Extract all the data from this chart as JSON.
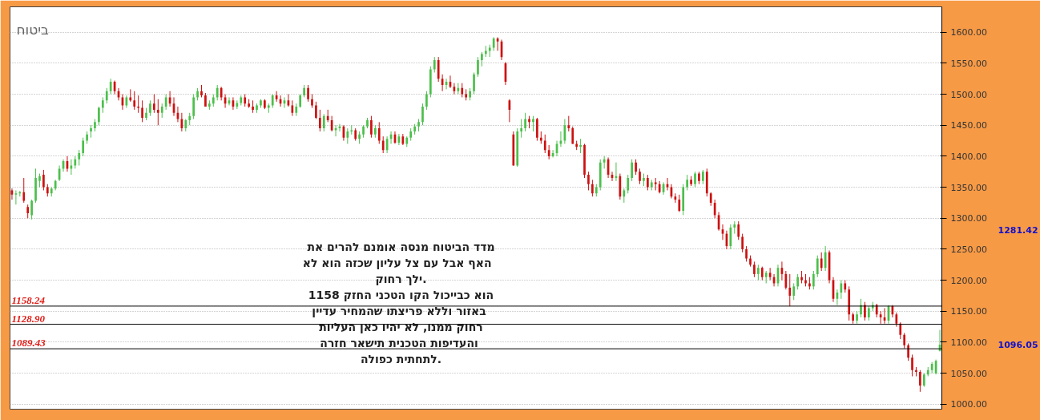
{
  "chart_data": {
    "type": "candlestick",
    "title": "ביטוח",
    "categories": [
      null,
      null,
      null,
      null,
      null,
      null,
      null,
      null,
      null,
      null,
      null,
      null,
      null,
      null,
      null,
      null,
      null,
      null,
      null,
      null,
      null,
      null,
      null,
      null,
      null,
      null,
      null,
      null,
      null,
      null,
      null,
      null,
      null,
      null,
      null,
      null,
      null,
      null,
      null,
      null,
      null,
      null,
      null,
      null,
      null,
      null,
      null,
      null,
      null,
      null,
      null,
      null,
      null,
      null,
      null,
      null,
      null,
      null,
      null,
      null,
      null,
      null,
      null,
      null,
      null,
      null,
      null,
      null,
      null,
      null,
      null,
      null,
      null,
      null,
      null,
      null,
      null,
      null,
      null,
      null,
      null,
      null,
      null,
      null,
      null,
      null,
      null,
      null,
      null,
      null,
      null,
      null,
      null,
      null,
      null,
      null,
      null,
      null,
      null,
      null,
      null,
      null,
      null,
      null,
      null,
      null,
      null,
      null,
      null,
      null,
      null,
      null,
      null,
      null,
      null,
      null,
      null,
      null,
      null,
      null,
      null,
      null,
      null,
      null,
      null,
      null,
      null,
      null,
      null,
      null,
      null,
      null,
      null,
      null,
      null,
      null,
      null,
      null,
      null,
      null,
      null,
      null,
      null,
      null,
      null,
      null,
      null,
      null,
      null,
      null,
      null,
      null,
      null,
      null,
      null,
      null,
      null,
      null,
      null,
      null,
      null,
      null,
      null,
      null,
      null,
      null,
      null,
      null,
      null,
      null,
      null,
      null,
      null,
      null,
      null,
      null,
      null,
      null,
      null,
      null,
      null,
      null,
      null,
      null,
      null,
      null,
      null,
      null,
      null,
      null,
      null,
      null,
      null,
      null,
      null,
      null,
      null,
      null,
      null,
      null,
      null,
      null,
      null,
      null,
      null,
      null,
      null,
      null,
      null,
      null,
      null,
      null,
      null,
      null,
      null,
      null,
      null,
      null,
      null,
      null,
      null,
      null,
      null,
      null,
      null,
      null,
      null,
      null,
      null,
      null,
      null,
      null,
      null,
      null,
      null,
      null
    ],
    "ohlc": [
      [
        1345,
        1348,
        1330,
        1338
      ],
      [
        1338,
        1345,
        1322,
        1340
      ],
      [
        1340,
        1344,
        1335,
        1342
      ],
      [
        1342,
        1365,
        1325,
        1328
      ],
      [
        1318,
        1322,
        1300,
        1308
      ],
      [
        1305,
        1330,
        1298,
        1328
      ],
      [
        1328,
        1380,
        1325,
        1365
      ],
      [
        1360,
        1372,
        1350,
        1368
      ],
      [
        1370,
        1378,
        1345,
        1350
      ],
      [
        1350,
        1355,
        1335,
        1340
      ],
      [
        1340,
        1350,
        1335,
        1348
      ],
      [
        1348,
        1362,
        1345,
        1360
      ],
      [
        1362,
        1385,
        1360,
        1380
      ],
      [
        1380,
        1395,
        1375,
        1392
      ],
      [
        1392,
        1400,
        1375,
        1380
      ],
      [
        1380,
        1395,
        1370,
        1385
      ],
      [
        1385,
        1400,
        1380,
        1395
      ],
      [
        1395,
        1410,
        1385,
        1405
      ],
      [
        1405,
        1430,
        1400,
        1425
      ],
      [
        1425,
        1440,
        1420,
        1435
      ],
      [
        1440,
        1450,
        1430,
        1445
      ],
      [
        1445,
        1460,
        1440,
        1455
      ],
      [
        1455,
        1480,
        1450,
        1478
      ],
      [
        1478,
        1495,
        1470,
        1490
      ],
      [
        1490,
        1510,
        1485,
        1505
      ],
      [
        1505,
        1525,
        1500,
        1520
      ],
      [
        1520,
        1522,
        1500,
        1505
      ],
      [
        1505,
        1510,
        1490,
        1495
      ],
      [
        1495,
        1500,
        1475,
        1482
      ],
      [
        1482,
        1498,
        1478,
        1495
      ],
      [
        1495,
        1508,
        1488,
        1490
      ],
      [
        1490,
        1505,
        1475,
        1480
      ],
      [
        1480,
        1498,
        1470,
        1478
      ],
      [
        1478,
        1490,
        1455,
        1462
      ],
      [
        1462,
        1478,
        1458,
        1470
      ],
      [
        1470,
        1490,
        1465,
        1485
      ],
      [
        1485,
        1500,
        1470,
        1475
      ],
      [
        1475,
        1492,
        1450,
        1470
      ],
      [
        1470,
        1485,
        1462,
        1480
      ],
      [
        1480,
        1500,
        1475,
        1495
      ],
      [
        1495,
        1505,
        1480,
        1485
      ],
      [
        1485,
        1495,
        1465,
        1470
      ],
      [
        1470,
        1480,
        1455,
        1460
      ],
      [
        1460,
        1470,
        1440,
        1445
      ],
      [
        1445,
        1460,
        1440,
        1458
      ],
      [
        1458,
        1470,
        1450,
        1465
      ],
      [
        1465,
        1500,
        1460,
        1495
      ],
      [
        1495,
        1510,
        1490,
        1505
      ],
      [
        1505,
        1515,
        1495,
        1498
      ],
      [
        1498,
        1502,
        1480,
        1480
      ],
      [
        1480,
        1490,
        1475,
        1485
      ],
      [
        1485,
        1500,
        1480,
        1495
      ],
      [
        1495,
        1515,
        1490,
        1510
      ],
      [
        1510,
        1512,
        1490,
        1495
      ],
      [
        1495,
        1500,
        1478,
        1485
      ],
      [
        1485,
        1495,
        1482,
        1490
      ],
      [
        1490,
        1495,
        1475,
        1480
      ],
      [
        1480,
        1490,
        1476,
        1486
      ],
      [
        1486,
        1498,
        1482,
        1495
      ],
      [
        1495,
        1500,
        1480,
        1485
      ],
      [
        1485,
        1492,
        1478,
        1480
      ],
      [
        1480,
        1490,
        1470,
        1475
      ],
      [
        1475,
        1485,
        1470,
        1482
      ],
      [
        1482,
        1492,
        1478,
        1490
      ],
      [
        1490,
        1492,
        1476,
        1478
      ],
      [
        1478,
        1485,
        1470,
        1482
      ],
      [
        1482,
        1500,
        1478,
        1498
      ],
      [
        1498,
        1505,
        1488,
        1492
      ],
      [
        1492,
        1498,
        1480,
        1485
      ],
      [
        1485,
        1495,
        1478,
        1490
      ],
      [
        1490,
        1500,
        1480,
        1482
      ],
      [
        1482,
        1490,
        1465,
        1470
      ],
      [
        1470,
        1485,
        1465,
        1480
      ],
      [
        1480,
        1500,
        1478,
        1498
      ],
      [
        1498,
        1515,
        1495,
        1510
      ],
      [
        1510,
        1515,
        1488,
        1492
      ],
      [
        1492,
        1500,
        1478,
        1482
      ],
      [
        1482,
        1488,
        1460,
        1462
      ],
      [
        1462,
        1475,
        1440,
        1445
      ],
      [
        1445,
        1468,
        1440,
        1465
      ],
      [
        1465,
        1475,
        1455,
        1458
      ],
      [
        1458,
        1465,
        1440,
        1442
      ],
      [
        1442,
        1450,
        1432,
        1445
      ],
      [
        1445,
        1452,
        1440,
        1448
      ],
      [
        1448,
        1450,
        1425,
        1430
      ],
      [
        1430,
        1445,
        1420,
        1440
      ],
      [
        1440,
        1450,
        1435,
        1442
      ],
      [
        1442,
        1445,
        1425,
        1428
      ],
      [
        1428,
        1440,
        1420,
        1435
      ],
      [
        1435,
        1450,
        1430,
        1448
      ],
      [
        1448,
        1462,
        1445,
        1458
      ],
      [
        1458,
        1465,
        1430,
        1435
      ],
      [
        1435,
        1450,
        1430,
        1445
      ],
      [
        1445,
        1455,
        1420,
        1425
      ],
      [
        1425,
        1432,
        1405,
        1410
      ],
      [
        1410,
        1432,
        1405,
        1428
      ],
      [
        1428,
        1440,
        1420,
        1435
      ],
      [
        1435,
        1440,
        1420,
        1422
      ],
      [
        1422,
        1436,
        1418,
        1432
      ],
      [
        1432,
        1436,
        1418,
        1420
      ],
      [
        1420,
        1432,
        1415,
        1430
      ],
      [
        1430,
        1445,
        1425,
        1440
      ],
      [
        1440,
        1452,
        1435,
        1448
      ],
      [
        1448,
        1460,
        1440,
        1455
      ],
      [
        1455,
        1485,
        1450,
        1480
      ],
      [
        1480,
        1505,
        1475,
        1500
      ],
      [
        1500,
        1545,
        1495,
        1540
      ],
      [
        1540,
        1560,
        1535,
        1555
      ],
      [
        1555,
        1560,
        1520,
        1525
      ],
      [
        1525,
        1532,
        1505,
        1515
      ],
      [
        1515,
        1525,
        1508,
        1520
      ],
      [
        1520,
        1530,
        1510,
        1512
      ],
      [
        1512,
        1518,
        1500,
        1505
      ],
      [
        1505,
        1518,
        1500,
        1510
      ],
      [
        1510,
        1518,
        1495,
        1500
      ],
      [
        1500,
        1508,
        1490,
        1495
      ],
      [
        1495,
        1510,
        1490,
        1505
      ],
      [
        1505,
        1535,
        1500,
        1532
      ],
      [
        1532,
        1560,
        1528,
        1555
      ],
      [
        1555,
        1568,
        1545,
        1565
      ],
      [
        1565,
        1578,
        1560,
        1570
      ],
      [
        1570,
        1580,
        1560,
        1575
      ],
      [
        1575,
        1592,
        1570,
        1590
      ],
      [
        1590,
        1592,
        1570,
        1585
      ],
      [
        1585,
        1588,
        1555,
        1560
      ],
      [
        1550,
        1552,
        1515,
        1520
      ],
      [
        1490,
        1492,
        1455,
        1475
      ],
      [
        1435,
        1440,
        1385,
        1385
      ],
      [
        1385,
        1445,
        1383,
        1440
      ],
      [
        1440,
        1460,
        1430,
        1445
      ],
      [
        1445,
        1470,
        1440,
        1460
      ],
      [
        1460,
        1465,
        1445,
        1455
      ],
      [
        1455,
        1465,
        1440,
        1460
      ],
      [
        1460,
        1462,
        1425,
        1430
      ],
      [
        1430,
        1440,
        1420,
        1425
      ],
      [
        1425,
        1435,
        1405,
        1410
      ],
      [
        1410,
        1418,
        1395,
        1400
      ],
      [
        1400,
        1410,
        1398,
        1405
      ],
      [
        1405,
        1425,
        1400,
        1420
      ],
      [
        1420,
        1440,
        1415,
        1425
      ],
      [
        1425,
        1460,
        1420,
        1450
      ],
      [
        1450,
        1465,
        1440,
        1445
      ],
      [
        1445,
        1448,
        1420,
        1420
      ],
      [
        1420,
        1425,
        1410,
        1415
      ],
      [
        1415,
        1428,
        1405,
        1418
      ],
      [
        1418,
        1420,
        1365,
        1370
      ],
      [
        1370,
        1375,
        1345,
        1355
      ],
      [
        1355,
        1362,
        1335,
        1340
      ],
      [
        1340,
        1355,
        1335,
        1350
      ],
      [
        1350,
        1395,
        1345,
        1390
      ],
      [
        1390,
        1400,
        1380,
        1395
      ],
      [
        1395,
        1398,
        1365,
        1370
      ],
      [
        1370,
        1375,
        1360,
        1365
      ],
      [
        1365,
        1390,
        1360,
        1368
      ],
      [
        1368,
        1372,
        1330,
        1335
      ],
      [
        1335,
        1348,
        1325,
        1345
      ],
      [
        1345,
        1370,
        1340,
        1365
      ],
      [
        1365,
        1395,
        1360,
        1390
      ],
      [
        1390,
        1395,
        1370,
        1375
      ],
      [
        1375,
        1380,
        1355,
        1360
      ],
      [
        1360,
        1372,
        1352,
        1365
      ],
      [
        1365,
        1370,
        1345,
        1350
      ],
      [
        1350,
        1362,
        1345,
        1358
      ],
      [
        1358,
        1365,
        1345,
        1355
      ],
      [
        1355,
        1360,
        1340,
        1342
      ],
      [
        1342,
        1358,
        1338,
        1355
      ],
      [
        1355,
        1365,
        1345,
        1350
      ],
      [
        1350,
        1355,
        1332,
        1335
      ],
      [
        1335,
        1340,
        1325,
        1330
      ],
      [
        1330,
        1338,
        1310,
        1312
      ],
      [
        1312,
        1355,
        1305,
        1350
      ],
      [
        1350,
        1370,
        1345,
        1362
      ],
      [
        1362,
        1368,
        1352,
        1355
      ],
      [
        1355,
        1375,
        1350,
        1372
      ],
      [
        1372,
        1375,
        1355,
        1360
      ],
      [
        1360,
        1378,
        1355,
        1375
      ],
      [
        1375,
        1380,
        1335,
        1340
      ],
      [
        1340,
        1342,
        1320,
        1325
      ],
      [
        1325,
        1330,
        1300,
        1305
      ],
      [
        1305,
        1310,
        1280,
        1282
      ],
      [
        1282,
        1290,
        1265,
        1275
      ],
      [
        1275,
        1280,
        1250,
        1255
      ],
      [
        1255,
        1290,
        1250,
        1285
      ],
      [
        1285,
        1295,
        1275,
        1290
      ],
      [
        1290,
        1295,
        1265,
        1270
      ],
      [
        1270,
        1275,
        1245,
        1250
      ],
      [
        1250,
        1255,
        1230,
        1235
      ],
      [
        1235,
        1240,
        1222,
        1225
      ],
      [
        1225,
        1230,
        1205,
        1210
      ],
      [
        1210,
        1225,
        1200,
        1220
      ],
      [
        1220,
        1222,
        1200,
        1205
      ],
      [
        1205,
        1215,
        1195,
        1212
      ],
      [
        1212,
        1220,
        1200,
        1205
      ],
      [
        1205,
        1210,
        1190,
        1195
      ],
      [
        1195,
        1225,
        1190,
        1220
      ],
      [
        1220,
        1230,
        1200,
        1210
      ],
      [
        1210,
        1215,
        1185,
        1188
      ],
      [
        1188,
        1210,
        1158,
        1175
      ],
      [
        1175,
        1195,
        1168,
        1190
      ],
      [
        1190,
        1210,
        1185,
        1205
      ],
      [
        1205,
        1215,
        1195,
        1200
      ],
      [
        1200,
        1210,
        1190,
        1195
      ],
      [
        1195,
        1205,
        1185,
        1190
      ],
      [
        1190,
        1215,
        1185,
        1210
      ],
      [
        1210,
        1240,
        1205,
        1235
      ],
      [
        1235,
        1245,
        1215,
        1220
      ],
      [
        1220,
        1255,
        1215,
        1245
      ],
      [
        1245,
        1248,
        1195,
        1200
      ],
      [
        1200,
        1205,
        1165,
        1170
      ],
      [
        1170,
        1185,
        1160,
        1180
      ],
      [
        1180,
        1200,
        1170,
        1195
      ],
      [
        1195,
        1200,
        1180,
        1185
      ],
      [
        1185,
        1190,
        1135,
        1145
      ],
      [
        1145,
        1148,
        1130,
        1135
      ],
      [
        1135,
        1150,
        1130,
        1145
      ],
      [
        1145,
        1170,
        1140,
        1160
      ],
      [
        1160,
        1165,
        1135,
        1140
      ],
      [
        1140,
        1158,
        1135,
        1155
      ],
      [
        1155,
        1165,
        1150,
        1160
      ],
      [
        1160,
        1162,
        1140,
        1145
      ],
      [
        1145,
        1150,
        1130,
        1140
      ],
      [
        1140,
        1155,
        1130,
        1135
      ],
      [
        1135,
        1160,
        1130,
        1158
      ],
      [
        1158,
        1160,
        1140,
        1145
      ],
      [
        1145,
        1148,
        1125,
        1130
      ],
      [
        1130,
        1132,
        1105,
        1112
      ],
      [
        1112,
        1115,
        1090,
        1095
      ],
      [
        1095,
        1098,
        1070,
        1075
      ],
      [
        1075,
        1080,
        1045,
        1055
      ],
      [
        1055,
        1060,
        1045,
        1052
      ],
      [
        1052,
        1055,
        1020,
        1030
      ],
      [
        1030,
        1050,
        1028,
        1048
      ],
      [
        1048,
        1060,
        1045,
        1055
      ],
      [
        1055,
        1068,
        1050,
        1065
      ],
      [
        1050,
        1072,
        1048,
        1070
      ],
      [
        1086,
        1120,
        1085,
        1096.05
      ]
    ],
    "ylim": [
      992,
      1641
    ],
    "yticks": [
      {
        "value": 1000,
        "label": "1000.00"
      },
      {
        "value": 1050,
        "label": "1050.00"
      },
      {
        "value": 1100,
        "label": "1100.00"
      },
      {
        "value": 1150,
        "label": "1150.00"
      },
      {
        "value": 1200,
        "label": "1200.00"
      },
      {
        "value": 1250,
        "label": "1250.00"
      },
      {
        "value": 1300,
        "label": "1300.00"
      },
      {
        "value": 1350,
        "label": "1350.00"
      },
      {
        "value": 1400,
        "label": "1400.00"
      },
      {
        "value": 1450,
        "label": "1450.00"
      },
      {
        "value": 1500,
        "label": "1500.00"
      },
      {
        "value": 1550,
        "label": "1550.00"
      },
      {
        "value": 1600,
        "label": "1600.00"
      }
    ],
    "grid": "y",
    "tick_labels": "y",
    "ref_lines": [
      {
        "axis": "y",
        "value": 1158.24,
        "label": "1158.24",
        "color": "#000000"
      },
      {
        "axis": "y",
        "value": 1128.9,
        "label": "1128.90",
        "color": "#000000"
      },
      {
        "axis": "y",
        "value": 1089.43,
        "label": "1089.43",
        "color": "#000000"
      }
    ],
    "annotations": [
      "מדד הביטוח מנסה אומנם להרים את\nהאף אבל  עם צל עליון שכזה  הוא לא\nילך רחוק.\n1158 הוא כבייכול הקו הטכני החזק\nבאזור  וללא פריצתו שהמחיר עדיין\nרחוק ממנו, לא יהיו כאן העליות\nוהעדיפות הטכנית תישאר  חזרה\nלתחתית כפולה.",
      "1281.42",
      "1096.05"
    ]
  }
}
